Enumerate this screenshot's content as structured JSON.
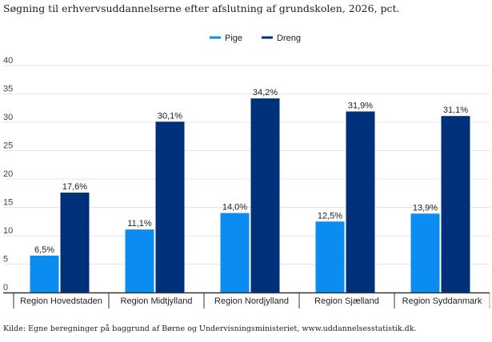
{
  "title": "Søgning til erhvervsuddannelserne efter afslutning af grundskolen, 2026, pct.",
  "source": "Kilde: Egne beregninger på baggrund af Børne  og Undervisningsministeriet, www.uddannelsesstatistik.dk.",
  "colors": {
    "pige": "#0a8cf0",
    "dreng": "#00307a",
    "grid": "#e4e4e4",
    "axis": "#333333"
  },
  "chart_data": {
    "type": "bar",
    "title": "Søgning til erhvervsuddannelserne efter afslutning af grundskolen, 2026, pct.",
    "xlabel": "",
    "ylabel": "",
    "ylim": [
      0,
      40
    ],
    "yticks": [
      0,
      5,
      10,
      15,
      20,
      25,
      30,
      35,
      40
    ],
    "grid": true,
    "legend_position": "top",
    "categories": [
      "Region Hovedstaden",
      "Region Midtjylland",
      "Region Nordjylland",
      "Region Sjælland",
      "Region Syddanmark"
    ],
    "series": [
      {
        "name": "Pige",
        "values": [
          6.5,
          11.1,
          14.0,
          12.5,
          13.9
        ],
        "labels": [
          "6,5%",
          "11,1%",
          "14,0%",
          "12,5%",
          "13,9%"
        ]
      },
      {
        "name": "Dreng",
        "values": [
          17.6,
          30.1,
          34.2,
          31.9,
          31.1
        ],
        "labels": [
          "17,6%",
          "30,1%",
          "34,2%",
          "31,9%",
          "31,1%"
        ]
      }
    ]
  }
}
